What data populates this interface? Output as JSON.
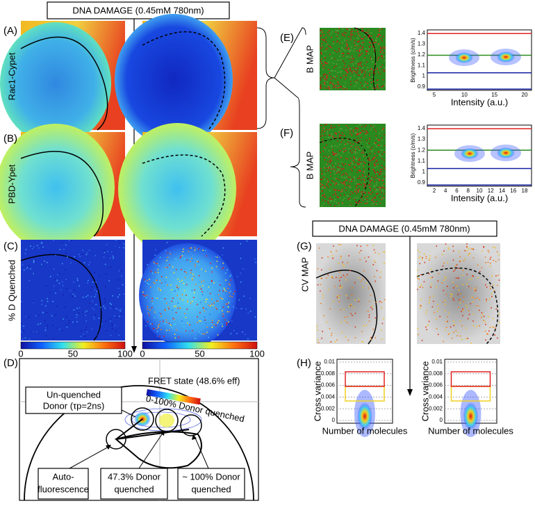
{
  "header": {
    "title": "DNA DAMAGE (0.45mM 780nm)"
  },
  "panels": {
    "A": {
      "label": "(A)",
      "ylabel": "Rac1-Cypet"
    },
    "B": {
      "label": "(B)",
      "ylabel": "PBD-Ypet"
    },
    "C": {
      "label": "(C)",
      "ylabel": "% D Quenched",
      "colorbar_ticks": [
        "0",
        "50",
        "100"
      ]
    },
    "D": {
      "label": "(D)",
      "title": "FRET state (48.6% eff)",
      "colorbar_label": "0-100% Donor quenched",
      "annotations": [
        [
          "Un-quenched",
          "Donor (τp=2ns)"
        ],
        [
          "Auto-",
          "fluorescence"
        ],
        [
          "47.3% Donor",
          "quenched"
        ],
        [
          "~ 100% Donor",
          "quenched"
        ]
      ]
    },
    "E": {
      "label": "(E)",
      "image_label": "B MAP",
      "xlabel": "Intensity (a.u.)",
      "ylabel": "Brightness (c/m/s)",
      "yticks": [
        "1.4",
        "1.3",
        "1.2",
        "1.1",
        "1",
        "0.9"
      ],
      "xticks": [
        "5",
        "10",
        "15",
        "20"
      ]
    },
    "F": {
      "label": "(F)",
      "image_label": "B MAP",
      "xlabel": "Intensity (a.u.)",
      "ylabel": "Brightness (c/m/s)",
      "yticks": [
        "1.4",
        "1.3",
        "1.2",
        "1.1",
        "1",
        "0.9"
      ],
      "xticks": [
        "2",
        "4",
        "6",
        "8",
        "10",
        "12",
        "14",
        "16",
        "18"
      ]
    },
    "G": {
      "label": "(G)",
      "title": "DNA DAMAGE (0.45mM 780nm)",
      "image_label": "CV MAP"
    },
    "H": {
      "label": "(H)",
      "xlabel": "Number of molecules",
      "ylabel": "Cross variance",
      "yticks": [
        "0.01",
        "0.008",
        "0.006",
        "0.004",
        "0.002",
        "0"
      ]
    }
  }
}
